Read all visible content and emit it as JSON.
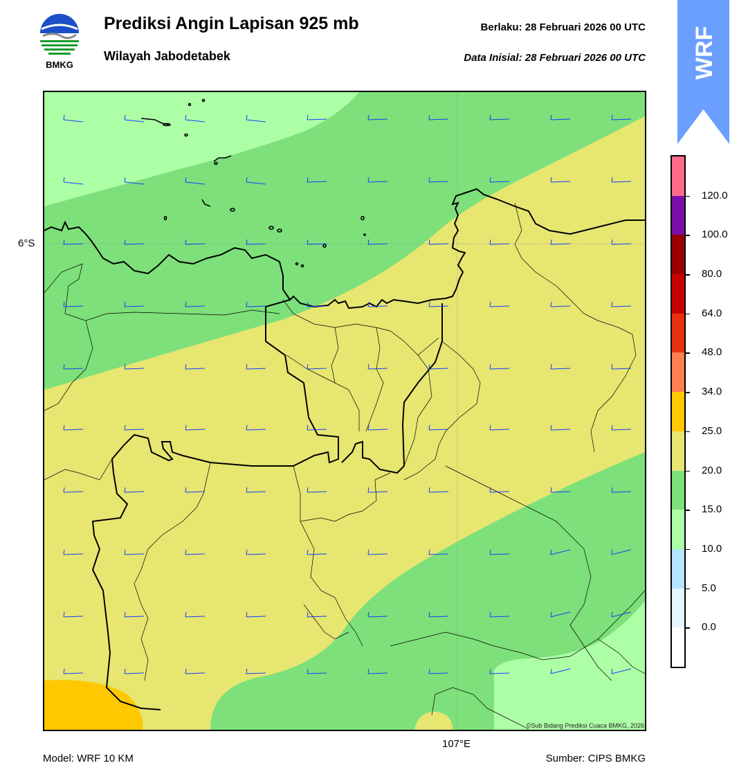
{
  "header": {
    "title": "Prediksi Angin Lapisan 925 mb",
    "subtitle": "Wilayah Jabodetabek",
    "valid": "Berlaku:  28 Februari 2026 00 UTC",
    "initial": "Data Inisial:  28 Februari 2026 00 UTC"
  },
  "logo": {
    "text": "BMKG",
    "icon": "bmkg-logo-icon"
  },
  "banner": {
    "text": "WRF",
    "color": "#6b9fff"
  },
  "map": {
    "lat_label": "6°S",
    "lon_label": "107°E",
    "copyright": "©Sub Bidang Prediksi Cuaca BMKG, 2026",
    "barb_color": "#1a3cff"
  },
  "footer": {
    "model": "Model: WRF 10 KM",
    "source": "Sumber: CIPS BMKG"
  },
  "colorbar": {
    "labels": [
      "120.0",
      "100.0",
      "80.0",
      "64.0",
      "48.0",
      "34.0",
      "25.0",
      "20.0",
      "15.0",
      "10.0",
      "5.0",
      "0.0"
    ],
    "colors": [
      "#ff6b8a",
      "#7a0fa8",
      "#9a0000",
      "#c80000",
      "#e83010",
      "#ff7f50",
      "#ffc800",
      "#e6e671",
      "#7de07a",
      "#adffa6",
      "#b4e4ff",
      "#e4f6ff",
      "#ffffff"
    ]
  }
}
